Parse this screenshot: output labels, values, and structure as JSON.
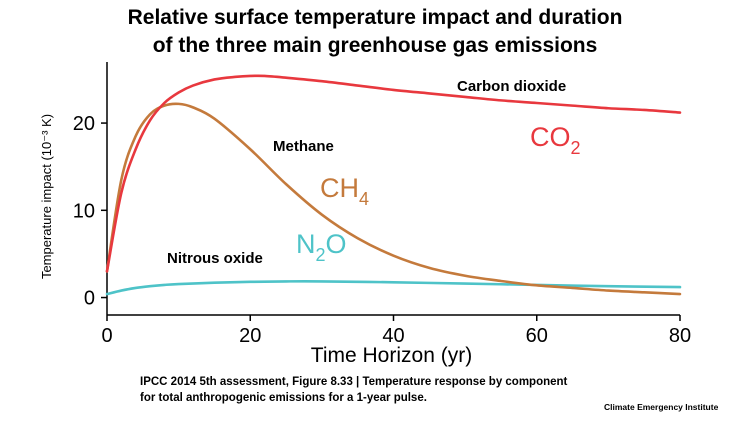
{
  "title_lines": [
    "Relative surface temperature impact and duration",
    "of the three main greenhouse gas emissions"
  ],
  "caption_lines": [
    "IPCC 2014 5th assessment, Figure 8.33 | Temperature response by component",
    "for total anthropogenic emissions for a 1-year pulse."
  ],
  "credit": "Climate Emergency Institute",
  "chart_data": {
    "type": "line",
    "title": "Relative surface temperature impact and duration of the three main greenhouse gas emissions",
    "xlabel": "Time Horizon (yr)",
    "ylabel": "Temperature impact (10⁻³ K)",
    "xlim": [
      0,
      80
    ],
    "ylim": [
      -2,
      27
    ],
    "xticks": [
      0,
      20,
      40,
      60,
      80
    ],
    "yticks": [
      0,
      10,
      20
    ],
    "grid": false,
    "series": [
      {
        "name": "CO2",
        "label": "Carbon dioxide",
        "symbol_base": "CO",
        "symbol_sub": "2",
        "color": "#e8383e",
        "x": [
          0,
          2,
          4,
          6,
          8,
          10,
          12,
          15,
          18,
          20,
          22,
          25,
          30,
          35,
          40,
          45,
          50,
          55,
          60,
          65,
          70,
          75,
          80
        ],
        "y": [
          3,
          12,
          17,
          20.3,
          22.3,
          23.5,
          24.3,
          25,
          25.3,
          25.4,
          25.4,
          25.2,
          24.8,
          24.3,
          23.8,
          23.4,
          23,
          22.6,
          22.3,
          22,
          21.7,
          21.5,
          21.2
        ]
      },
      {
        "name": "CH4",
        "label": "Methane",
        "symbol_base": "CH",
        "symbol_sub": "4",
        "color": "#c47a3c",
        "x": [
          0,
          2,
          4,
          6,
          8,
          10,
          12,
          15,
          20,
          25,
          30,
          35,
          40,
          45,
          50,
          55,
          60,
          65,
          70,
          75,
          80
        ],
        "y": [
          3,
          13.5,
          18.5,
          21,
          22,
          22.2,
          21.8,
          20.5,
          17,
          13,
          9.5,
          6.8,
          4.8,
          3.4,
          2.5,
          1.9,
          1.4,
          1.1,
          0.8,
          0.6,
          0.4
        ]
      },
      {
        "name": "N2O",
        "label": "Nitrous oxide",
        "symbol_base": "N",
        "symbol_sub": "2",
        "symbol_tail": "O",
        "color": "#4ec3c8",
        "x": [
          0,
          2,
          4,
          6,
          8,
          10,
          15,
          20,
          25,
          30,
          40,
          50,
          60,
          70,
          80
        ],
        "y": [
          0.4,
          0.8,
          1.1,
          1.3,
          1.45,
          1.55,
          1.7,
          1.8,
          1.85,
          1.85,
          1.75,
          1.6,
          1.45,
          1.3,
          1.2
        ]
      }
    ]
  }
}
